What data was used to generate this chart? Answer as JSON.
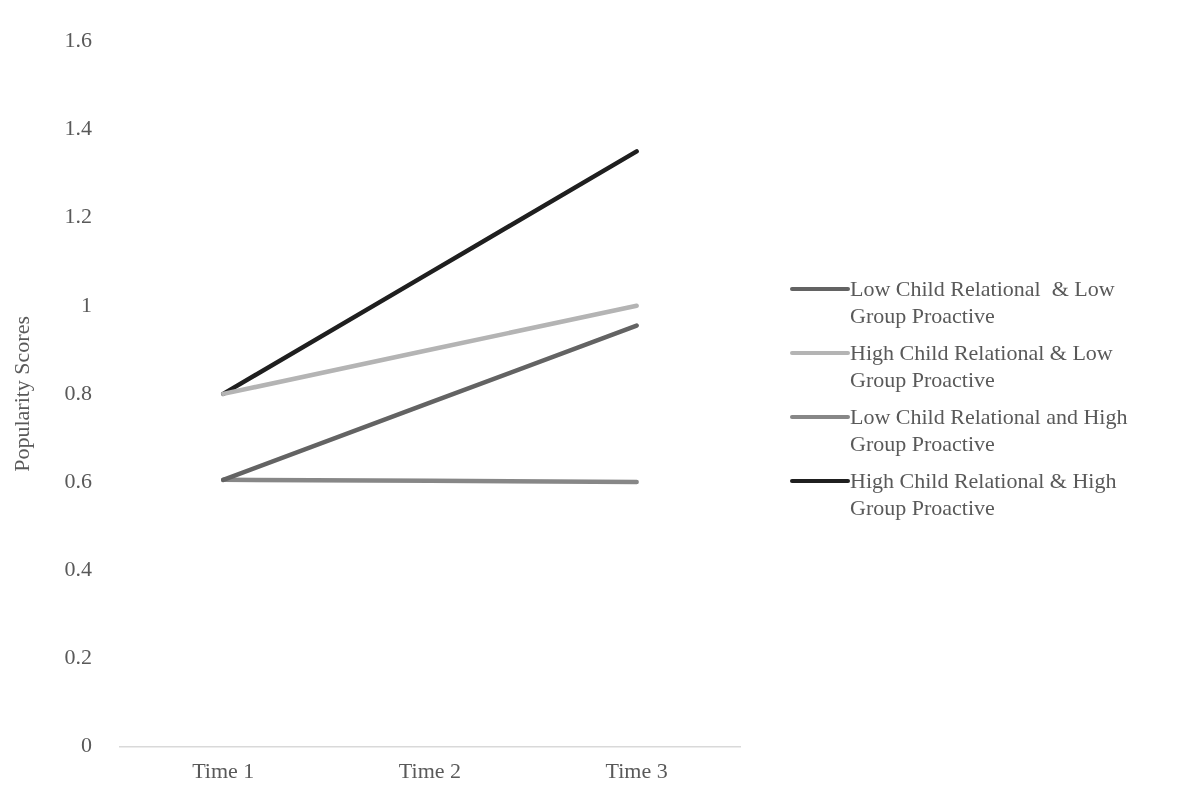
{
  "chart_data": {
    "type": "line",
    "ylabel": "Popularity Scores",
    "categories": [
      "Time 1",
      "Time 2",
      "Time 3"
    ],
    "series": [
      {
        "name": "Low Child Relational  & Low Group Proactive",
        "color": "#636363",
        "values": [
          0.605,
          0.78,
          0.955
        ]
      },
      {
        "name": "High Child Relational & Low Group Proactive",
        "color": "#b4b4b4",
        "values": [
          0.8,
          0.9,
          1.0
        ]
      },
      {
        "name": "Low Child Relational and High Group Proactive",
        "color": "#878787",
        "values": [
          0.605,
          0.603,
          0.6
        ]
      },
      {
        "name": "High Child Relational & High Group Proactive",
        "color": "#1f1f1f",
        "values": [
          0.8,
          1.075,
          1.35
        ]
      }
    ],
    "ylim": [
      0,
      1.6
    ],
    "yticks": [
      0,
      0.2,
      0.4,
      0.6,
      0.8,
      1,
      1.2,
      1.4,
      1.6
    ],
    "grid": false,
    "legend": "right",
    "marker": "none",
    "line_style": "solid"
  }
}
